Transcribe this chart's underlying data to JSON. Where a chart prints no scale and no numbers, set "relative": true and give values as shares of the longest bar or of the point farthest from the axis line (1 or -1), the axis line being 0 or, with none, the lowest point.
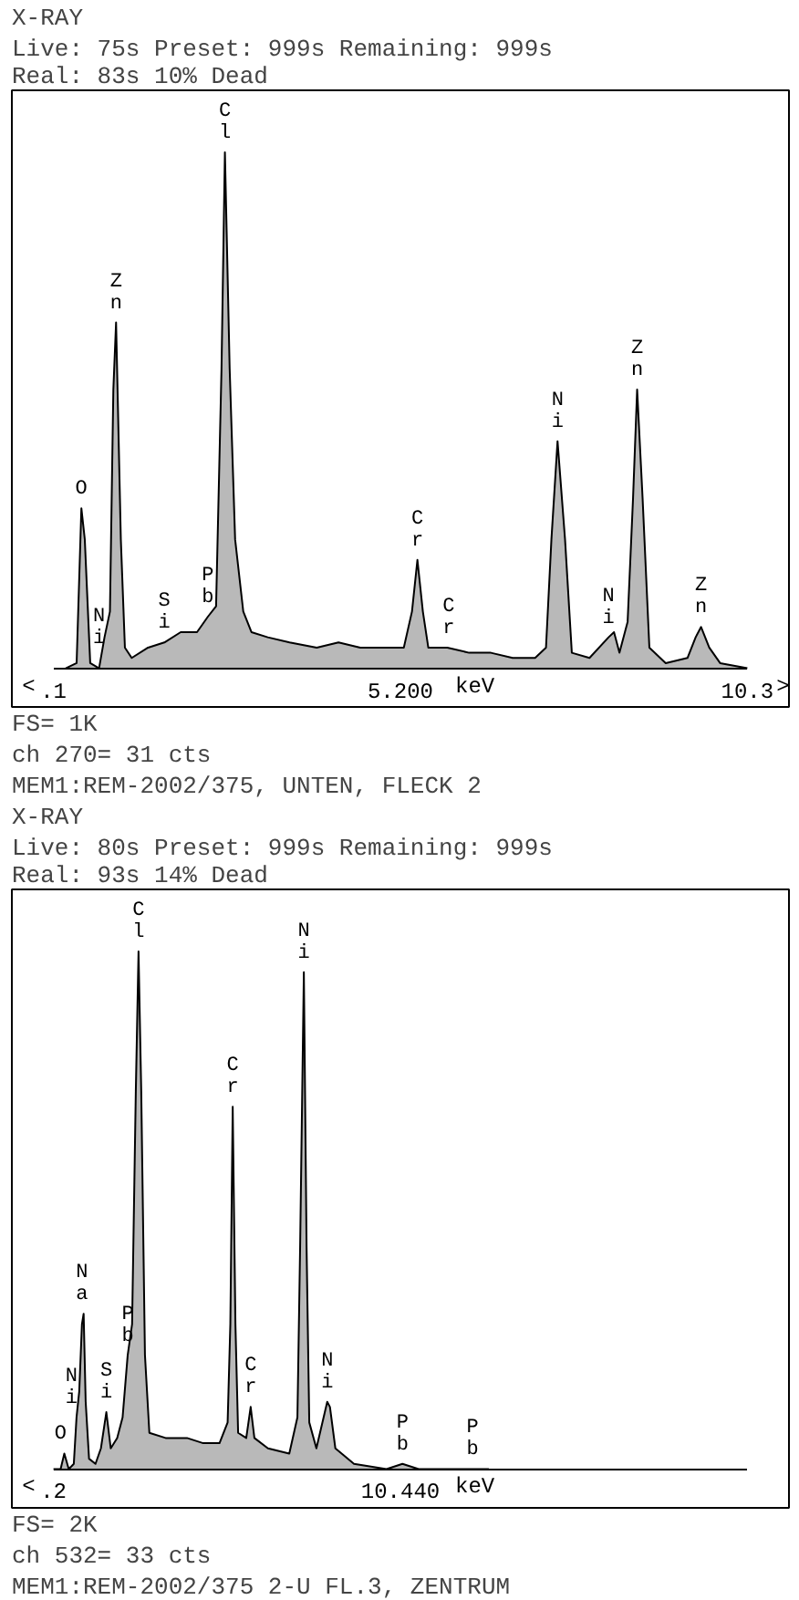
{
  "chart_data": [
    {
      "type": "area",
      "relative": true,
      "title": "X-RAY",
      "subtitle": "Live:   75s Preset:  999s Remaining:  999s\nReal:   83s     10% Dead",
      "xlim": [
        0.1,
        10.3
      ],
      "xticks": [
        {
          "value": 0.1,
          "label": ".1"
        },
        {
          "value": 5.2,
          "label": "5.200"
        },
        {
          "value": 10.3,
          "label": "10.3"
        }
      ],
      "xlabel": "keV",
      "tick_labels": "x",
      "grid": false,
      "series": [
        {
          "color": "#a8a8a8",
          "x": [
            0.28,
            0.44,
            0.51,
            0.56,
            0.64,
            0.77,
            0.85,
            0.93,
            0.98,
            1.02,
            1.09,
            1.15,
            1.25,
            1.49,
            1.73,
            1.97,
            2.21,
            2.37,
            2.49,
            2.57,
            2.62,
            2.69,
            2.77,
            2.89,
            3.01,
            3.25,
            3.57,
            3.97,
            4.29,
            4.61,
            4.93,
            5.25,
            5.37,
            5.45,
            5.53,
            5.61,
            5.89,
            6.21,
            6.53,
            6.85,
            7.18,
            7.34,
            7.42,
            7.51,
            7.62,
            7.72,
            7.98,
            8.26,
            8.34,
            8.42,
            8.54,
            8.62,
            8.68,
            8.76,
            8.86,
            9.1,
            9.42,
            9.54,
            9.62,
            9.74,
            9.9,
            10.3
          ],
          "values": [
            0,
            0.01,
            0.31,
            0.25,
            0.01,
            0,
            0.06,
            0.11,
            0.54,
            0.67,
            0.25,
            0.04,
            0.02,
            0.04,
            0.05,
            0.07,
            0.07,
            0.1,
            0.12,
            0.58,
            1,
            0.58,
            0.25,
            0.11,
            0.07,
            0.06,
            0.05,
            0.04,
            0.05,
            0.04,
            0.04,
            0.04,
            0.11,
            0.21,
            0.11,
            0.04,
            0.04,
            0.03,
            0.03,
            0.02,
            0.02,
            0.04,
            0.25,
            0.44,
            0.25,
            0.03,
            0.02,
            0.06,
            0.07,
            0.03,
            0.09,
            0.33,
            0.54,
            0.33,
            0.04,
            0.01,
            0.02,
            0.06,
            0.08,
            0.04,
            0.01,
            0
          ]
        }
      ],
      "annotations": [
        {
          "text": "O",
          "x": 0.51,
          "y": 0.31
        },
        {
          "text": "Ni",
          "x": 0.77,
          "y": 0.02
        },
        {
          "text": "Zn",
          "x": 1.02,
          "y": 0.67
        },
        {
          "text": "Si",
          "x": 1.73,
          "y": 0.05
        },
        {
          "text": "Pb",
          "x": 2.37,
          "y": 0.1
        },
        {
          "text": "Cl",
          "x": 2.62,
          "y": 1
        },
        {
          "text": "Cr",
          "x": 5.45,
          "y": 0.21
        },
        {
          "text": "Cr",
          "x": 5.91,
          "y": 0.04
        },
        {
          "text": "Ni",
          "x": 7.51,
          "y": 0.44
        },
        {
          "text": "Ni",
          "x": 8.26,
          "y": 0.06
        },
        {
          "text": "Zn",
          "x": 8.68,
          "y": 0.54
        },
        {
          "text": "Zn",
          "x": 9.62,
          "y": 0.08
        },
        "<",
        ">",
        "FS=  1K",
        "ch  270=    31  cts",
        "MEM1:REM-2002/375, UNTEN, FLECK 2"
      ]
    },
    {
      "type": "area",
      "relative": true,
      "title": "X-RAY",
      "subtitle": "Live:   80s Preset:  999s Remaining:  999s\nReal:   93s     14% Dead",
      "xlim": [
        0.2,
        20.68
      ],
      "xticks": [
        {
          "value": 0.2,
          "label": ".2"
        },
        {
          "value": 10.44,
          "label": "10.440"
        }
      ],
      "xlabel": "keV",
      "tick_labels": "x",
      "grid": false,
      "series": [
        {
          "color": "#a8a8a8",
          "x": [
            0.2,
            0.41,
            0.52,
            0.65,
            0.8,
            0.88,
            0.96,
            1.04,
            1.09,
            1.15,
            1.25,
            1.44,
            1.6,
            1.76,
            1.89,
            2.08,
            2.24,
            2.39,
            2.52,
            2.63,
            2.71,
            2.79,
            2.9,
            3.03,
            3.51,
            4.14,
            4.62,
            5.1,
            5.34,
            5.42,
            5.49,
            5.57,
            5.65,
            5.89,
            6.02,
            6.13,
            6.53,
            7.16,
            7.4,
            7.48,
            7.59,
            7.67,
            7.75,
            7.96,
            8.28,
            8.36,
            8.52,
            9.07,
            10.03,
            10.5,
            10.98,
            11.62,
            12.57,
            13.05
          ],
          "values": [
            0,
            0,
            0.03,
            0,
            0.01,
            0.1,
            0.15,
            0.28,
            0.3,
            0.13,
            0.02,
            0.01,
            0.04,
            0.11,
            0.04,
            0.06,
            0.1,
            0.22,
            0.28,
            0.73,
            1,
            0.73,
            0.22,
            0.07,
            0.06,
            0.06,
            0.05,
            0.05,
            0.09,
            0.28,
            0.7,
            0.28,
            0.07,
            0.06,
            0.12,
            0.06,
            0.04,
            0.03,
            0.1,
            0.43,
            0.96,
            0.43,
            0.09,
            0.04,
            0.13,
            0.12,
            0.04,
            0.01,
            0,
            0.01,
            0,
            0,
            0,
            0
          ]
        }
      ],
      "annotations": [
        {
          "text": "O",
          "x": 0.41,
          "y": 0.03
        },
        {
          "text": "Ni",
          "x": 0.73,
          "y": 0.1
        },
        {
          "text": "Na",
          "x": 1.04,
          "y": 0.3
        },
        {
          "text": "Si",
          "x": 1.76,
          "y": 0.11
        },
        {
          "text": "Pb",
          "x": 2.39,
          "y": 0.22
        },
        {
          "text": "Cl",
          "x": 2.71,
          "y": 1
        },
        {
          "text": "Cr",
          "x": 5.49,
          "y": 0.7
        },
        {
          "text": "Cr",
          "x": 6.02,
          "y": 0.12
        },
        {
          "text": "Ni",
          "x": 7.59,
          "y": 0.96
        },
        {
          "text": "Ni",
          "x": 8.28,
          "y": 0.13
        },
        {
          "text": "Pb",
          "x": 10.5,
          "y": 0.01
        },
        {
          "text": "Pb",
          "x": 12.57,
          "y": 0.0
        },
        "<",
        "FS=  2K",
        "ch  532=    33  cts",
        "MEM1:REM-2002/375 2-U FL.3, ZENTRUM"
      ]
    }
  ]
}
